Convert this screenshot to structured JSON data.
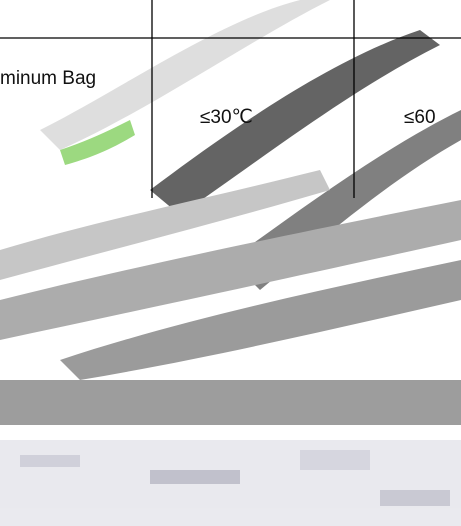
{
  "table": {
    "rows": [
      [
        "minum Bag",
        "≤30℃",
        "≤60"
      ]
    ]
  }
}
